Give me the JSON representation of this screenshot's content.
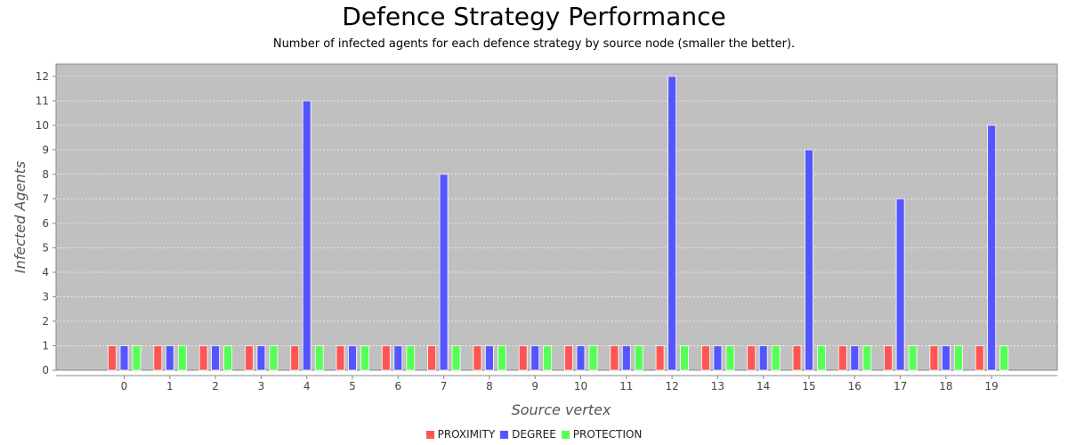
{
  "chart_data": {
    "type": "bar",
    "title": "Defence Strategy Performance",
    "subtitle": "Number of infected agents for each defence strategy by source node (smaller the better).",
    "xlabel": "Source vertex",
    "ylabel": "Infected Agents",
    "ylim": [
      0,
      12.5
    ],
    "yticks": [
      0,
      1,
      2,
      3,
      4,
      5,
      6,
      7,
      8,
      9,
      10,
      11,
      12
    ],
    "grid": true,
    "legend_position": "bottom",
    "categories": [
      "0",
      "1",
      "2",
      "3",
      "4",
      "5",
      "6",
      "7",
      "8",
      "9",
      "10",
      "11",
      "12",
      "13",
      "14",
      "15",
      "16",
      "17",
      "18",
      "19"
    ],
    "series": [
      {
        "name": "PROXIMITY",
        "color": "#ff5555",
        "values": [
          1,
          1,
          1,
          1,
          1,
          1,
          1,
          1,
          1,
          1,
          1,
          1,
          1,
          1,
          1,
          1,
          1,
          1,
          1,
          1
        ]
      },
      {
        "name": "DEGREE",
        "color": "#5555ff",
        "values": [
          1,
          1,
          1,
          1,
          11,
          1,
          1,
          8,
          1,
          1,
          1,
          1,
          12,
          1,
          1,
          9,
          1,
          7,
          1,
          10
        ]
      },
      {
        "name": "PROTECTION",
        "color": "#55ff55",
        "values": [
          1,
          1,
          1,
          1,
          1,
          1,
          1,
          1,
          1,
          1,
          1,
          1,
          1,
          1,
          1,
          1,
          1,
          1,
          1,
          1
        ]
      }
    ],
    "plot_background": "#c0c0c0"
  }
}
